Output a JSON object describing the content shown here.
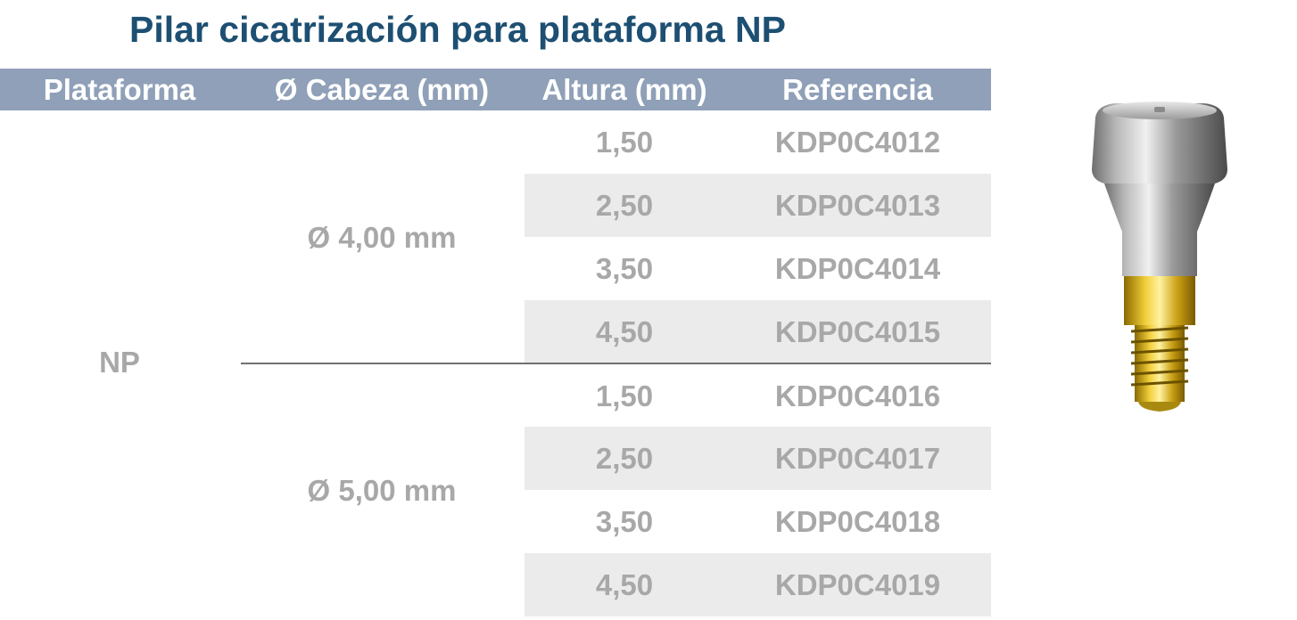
{
  "title": "Pilar cicatrización para plataforma NP",
  "table": {
    "headers": [
      "Plataforma",
      "Ø Cabeza (mm)",
      "Altura (mm)",
      "Referencia"
    ],
    "platform": "NP",
    "groups": [
      {
        "diameter": "Ø 4,00 mm",
        "rows": [
          {
            "altura": "1,50",
            "referencia": "KDP0C4012"
          },
          {
            "altura": "2,50",
            "referencia": "KDP0C4013"
          },
          {
            "altura": "3,50",
            "referencia": "KDP0C4014"
          },
          {
            "altura": "4,50",
            "referencia": "KDP0C4015"
          }
        ]
      },
      {
        "diameter": "Ø 5,00 mm",
        "rows": [
          {
            "altura": "1,50",
            "referencia": "KDP0C4016"
          },
          {
            "altura": "2,50",
            "referencia": "KDP0C4017"
          },
          {
            "altura": "3,50",
            "referencia": "KDP0C4018"
          },
          {
            "altura": "4,50",
            "referencia": "KDP0C4019"
          }
        ]
      }
    ]
  },
  "colors": {
    "title": "#1d4f72",
    "header_bg": "#8fa0b8",
    "header_text": "#ffffff",
    "cell_text": "#a8a8a8",
    "row_shade": "#ebebeb",
    "divider": "#707070"
  },
  "image": {
    "icon": "healing-abutment-product-image"
  }
}
